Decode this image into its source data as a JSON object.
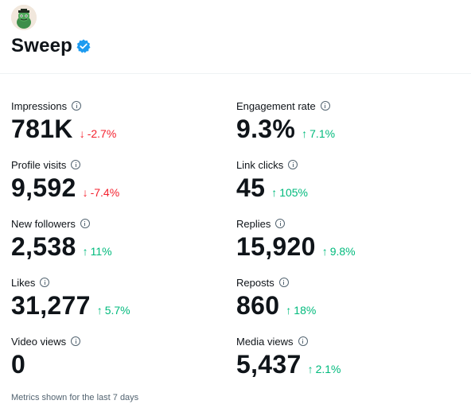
{
  "account": {
    "name": "Sweep",
    "avatar_icon": "frog-avatar-icon",
    "verified_icon": "verified-badge-icon",
    "verified_color": "#1d9bf0"
  },
  "metrics_left": [
    {
      "label": "Impressions",
      "value": "781K",
      "change": "-2.7%",
      "trend": "down"
    },
    {
      "label": "Profile visits",
      "value": "9,592",
      "change": "-7.4%",
      "trend": "down"
    },
    {
      "label": "New followers",
      "value": "2,538",
      "change": "11%",
      "trend": "up"
    },
    {
      "label": "Likes",
      "value": "31,277",
      "change": "5.7%",
      "trend": "up"
    },
    {
      "label": "Video views",
      "value": "0",
      "change": "",
      "trend": ""
    }
  ],
  "metrics_right": [
    {
      "label": "Engagement rate",
      "value": "9.3%",
      "change": "7.1%",
      "trend": "up"
    },
    {
      "label": "Link clicks",
      "value": "45",
      "change": "105%",
      "trend": "up"
    },
    {
      "label": "Replies",
      "value": "15,920",
      "change": "9.8%",
      "trend": "up"
    },
    {
      "label": "Reposts",
      "value": "860",
      "change": "18%",
      "trend": "up"
    },
    {
      "label": "Media views",
      "value": "5,437",
      "change": "2.1%",
      "trend": "up"
    }
  ],
  "footer": {
    "note": "Metrics shown for the last 7 days"
  },
  "colors": {
    "up": "#00ba7c",
    "down": "#f4212e",
    "text": "#0f1419",
    "muted": "#536471"
  }
}
